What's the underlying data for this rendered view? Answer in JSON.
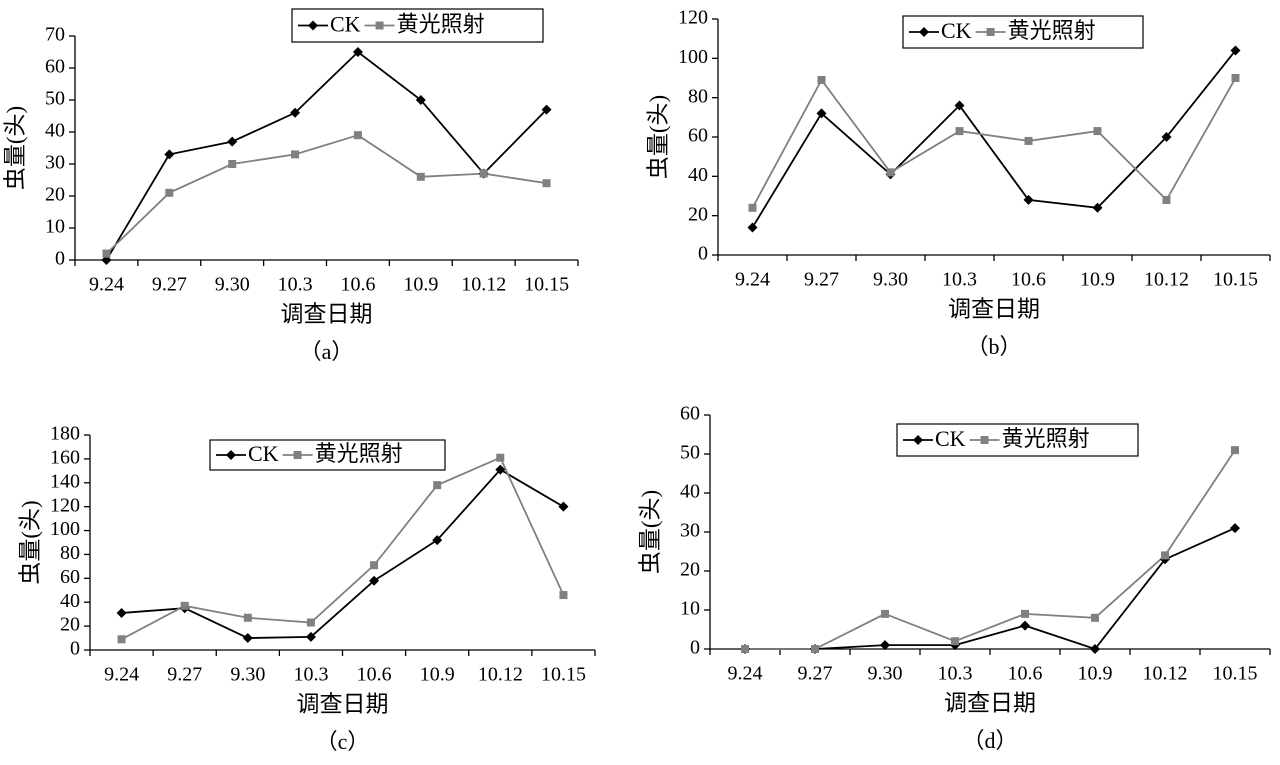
{
  "chart_data": [
    {
      "type": "line",
      "caption": "（a）",
      "xlabel": "调查日期",
      "ylabel": "虫量(头)",
      "categories": [
        "9.24",
        "9.27",
        "9.30",
        "10.3",
        "10.6",
        "10.9",
        "10.12",
        "10.15"
      ],
      "series": [
        {
          "name": "CK",
          "color": "#000000",
          "values": [
            0,
            33,
            37,
            46,
            65,
            50,
            27,
            47
          ]
        },
        {
          "name": "黄光照射",
          "color": "#808080",
          "values": [
            2,
            21,
            30,
            33,
            39,
            26,
            27,
            24
          ]
        }
      ],
      "ylim": [
        0,
        70
      ],
      "yticks": [
        0,
        10,
        20,
        30,
        40,
        50,
        60,
        70
      ]
    },
    {
      "type": "line",
      "caption": "（b）",
      "xlabel": "调查日期",
      "ylabel": "虫量(头)",
      "categories": [
        "9.24",
        "9.27",
        "9.30",
        "10.3",
        "10.6",
        "10.9",
        "10.12",
        "10.15"
      ],
      "series": [
        {
          "name": "CK",
          "color": "#000000",
          "values": [
            14,
            72,
            41,
            76,
            28,
            24,
            60,
            104
          ]
        },
        {
          "name": "黄光照射",
          "color": "#808080",
          "values": [
            24,
            89,
            42,
            63,
            58,
            63,
            28,
            90
          ]
        }
      ],
      "ylim": [
        0,
        120
      ],
      "yticks": [
        0,
        20,
        40,
        60,
        80,
        100,
        120
      ]
    },
    {
      "type": "line",
      "caption": "（c）",
      "xlabel": "调查日期",
      "ylabel": "虫量(头)",
      "categories": [
        "9.24",
        "9.27",
        "9.30",
        "10.3",
        "10.6",
        "10.9",
        "10.12",
        "10.15"
      ],
      "series": [
        {
          "name": "CK",
          "color": "#000000",
          "values": [
            31,
            35,
            10,
            11,
            58,
            92,
            151,
            120
          ]
        },
        {
          "name": "黄光照射",
          "color": "#808080",
          "values": [
            9,
            37,
            27,
            23,
            71,
            138,
            161,
            46
          ]
        }
      ],
      "ylim": [
        0,
        180
      ],
      "yticks": [
        0,
        20,
        40,
        60,
        80,
        100,
        120,
        140,
        160,
        180
      ]
    },
    {
      "type": "line",
      "caption": "（d）",
      "xlabel": "调查日期",
      "ylabel": "虫量(头)",
      "categories": [
        "9.24",
        "9.27",
        "9.30",
        "10.3",
        "10.6",
        "10.9",
        "10.12",
        "10.15"
      ],
      "series": [
        {
          "name": "CK",
          "color": "#000000",
          "values": [
            0,
            0,
            1,
            1,
            6,
            0,
            23,
            31
          ]
        },
        {
          "name": "黄光照射",
          "color": "#808080",
          "values": [
            0,
            0,
            9,
            2,
            9,
            8,
            24,
            51
          ]
        }
      ],
      "ylim": [
        0,
        60
      ],
      "yticks": [
        0,
        10,
        20,
        30,
        40,
        50,
        60
      ]
    }
  ]
}
